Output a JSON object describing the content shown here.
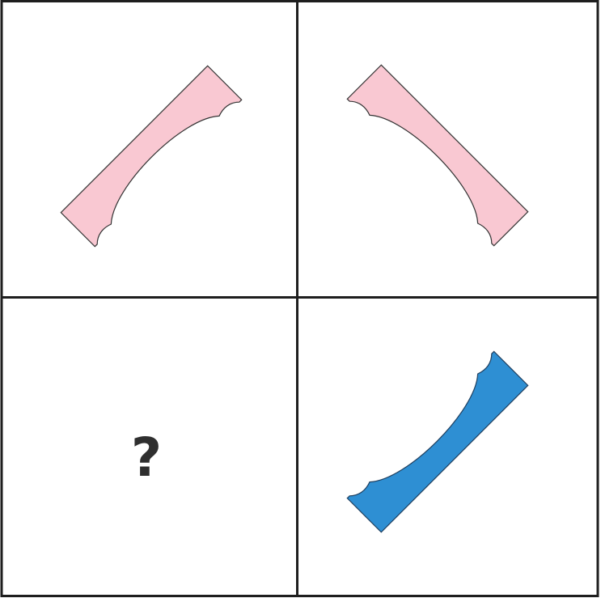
{
  "puzzle": {
    "cells": [
      {
        "id": "top-left",
        "kind": "shape",
        "shape": "bracket",
        "color": "#f9c8d2"
      },
      {
        "id": "top-right",
        "kind": "shape",
        "shape": "bracket",
        "color": "#f9c8d2"
      },
      {
        "id": "bottom-left",
        "kind": "question",
        "text": "?"
      },
      {
        "id": "bottom-right",
        "kind": "shape",
        "shape": "bracket",
        "color": "#2e8fd3"
      }
    ],
    "colors": {
      "grid": "#1e1e1e",
      "outline": "#333333",
      "pink": "#f9c8d2",
      "blue": "#2e8fd3",
      "question": "#2f2f2f"
    }
  }
}
